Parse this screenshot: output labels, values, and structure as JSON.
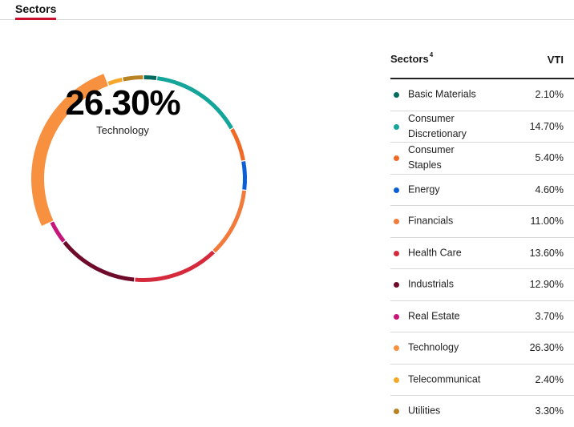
{
  "tab": {
    "label": "Sectors"
  },
  "donut": {
    "center_value": "26.30%",
    "center_label": "Technology",
    "highlight_index": 8
  },
  "table": {
    "header_sector": "Sectors",
    "header_footnote": "4",
    "header_fund": "VTI"
  },
  "chart_data": {
    "type": "pie",
    "title": "",
    "categories": [
      "Basic Materials",
      "Consumer Discretionary",
      "Consumer Staples",
      "Energy",
      "Financials",
      "Health Care",
      "Industrials",
      "Real Estate",
      "Technology",
      "Telecommunicat",
      "Utilities"
    ],
    "values": [
      2.1,
      14.7,
      5.4,
      4.6,
      11.0,
      13.6,
      12.9,
      3.7,
      26.3,
      2.4,
      3.3
    ],
    "value_labels": [
      "2.10%",
      "14.70%",
      "5.40%",
      "4.60%",
      "11.00%",
      "13.60%",
      "12.90%",
      "3.70%",
      "26.30%",
      "2.40%",
      "3.30%"
    ],
    "colors": [
      "#006b5e",
      "#14a59a",
      "#f06a25",
      "#0a5fd6",
      "#f27a3a",
      "#d42a3c",
      "#6e0a2a",
      "#c8157a",
      "#f8913f",
      "#f6a82a",
      "#b98222"
    ]
  }
}
